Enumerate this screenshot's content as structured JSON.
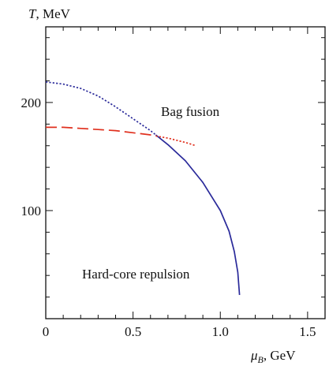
{
  "chart_data": {
    "type": "line",
    "x_label": {
      "symbol": "μ",
      "subscript": "B",
      "unit": ", GeV"
    },
    "y_label": {
      "symbol": "T",
      "unit": ", MeV"
    },
    "xlim": [
      0,
      1.6
    ],
    "ylim": [
      0,
      270
    ],
    "x_ticks": [
      0,
      0.5,
      1.0,
      1.5
    ],
    "x_tick_labels": [
      "0",
      "0.5",
      "1.0",
      "1.5"
    ],
    "y_ticks": [
      100,
      200
    ],
    "y_tick_labels": [
      "100",
      "200"
    ],
    "annotations": [
      {
        "text": "Bag fusion",
        "x": 0.95,
        "y": 184
      },
      {
        "text": "Hard-core repulsion",
        "x": 0.82,
        "y": 40
      }
    ],
    "series": [
      {
        "style": "dotted",
        "color": "#2a2a9a",
        "x": [
          0,
          0.1,
          0.2,
          0.3,
          0.4,
          0.5,
          0.6,
          0.63
        ],
        "y": [
          219,
          217,
          213,
          206,
          196,
          185,
          174,
          170
        ]
      },
      {
        "style": "solid",
        "color": "#2a2a9a",
        "x": [
          0.63,
          0.7,
          0.8,
          0.9,
          1.0,
          1.05,
          1.08,
          1.1,
          1.11
        ],
        "y": [
          170,
          161,
          146,
          126,
          100,
          81,
          62,
          43,
          22
        ]
      },
      {
        "style": "dashed",
        "color": "#e0301e",
        "x": [
          0,
          0.1,
          0.2,
          0.3,
          0.4,
          0.5,
          0.6,
          0.63
        ],
        "y": [
          177,
          177,
          176,
          175,
          174,
          172,
          170,
          169
        ]
      },
      {
        "style": "dotted",
        "color": "#e0301e",
        "x": [
          0.63,
          0.7,
          0.8,
          0.86
        ],
        "y": [
          169,
          167,
          163,
          160
        ]
      }
    ]
  }
}
